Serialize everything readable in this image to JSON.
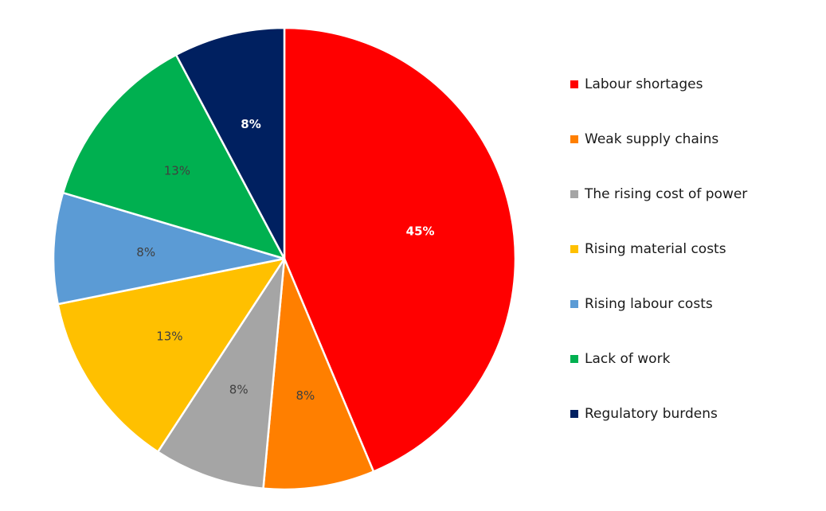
{
  "chart_data": {
    "type": "pie",
    "title": "",
    "slices": [
      {
        "label": "Labour shortages",
        "value": 45,
        "display": "45%",
        "color": "#FF0000",
        "label_color": "#FFFFFF",
        "label_weight": "bold"
      },
      {
        "label": "Weak supply chains",
        "value": 8,
        "display": "8%",
        "color": "#FF7F00",
        "label_color": "#404040",
        "label_weight": "normal"
      },
      {
        "label": "The rising cost of power",
        "value": 8,
        "display": "8%",
        "color": "#A5A5A5",
        "label_color": "#404040",
        "label_weight": "normal"
      },
      {
        "label": "Rising material costs",
        "value": 13,
        "display": "13%",
        "color": "#FFC000",
        "label_color": "#404040",
        "label_weight": "normal"
      },
      {
        "label": "Rising labour costs",
        "value": 8,
        "display": "8%",
        "color": "#5B9BD5",
        "label_color": "#404040",
        "label_weight": "normal"
      },
      {
        "label": "Lack of work",
        "value": 13,
        "display": "13%",
        "color": "#00B050",
        "label_color": "#404040",
        "label_weight": "normal"
      },
      {
        "label": "Regulatory burdens",
        "value": 8,
        "display": "8%",
        "color": "#002060",
        "label_color": "#FFFFFF",
        "label_weight": "bold"
      }
    ],
    "start": "12 o'clock",
    "direction": "clockwise",
    "legend_position": "right"
  }
}
